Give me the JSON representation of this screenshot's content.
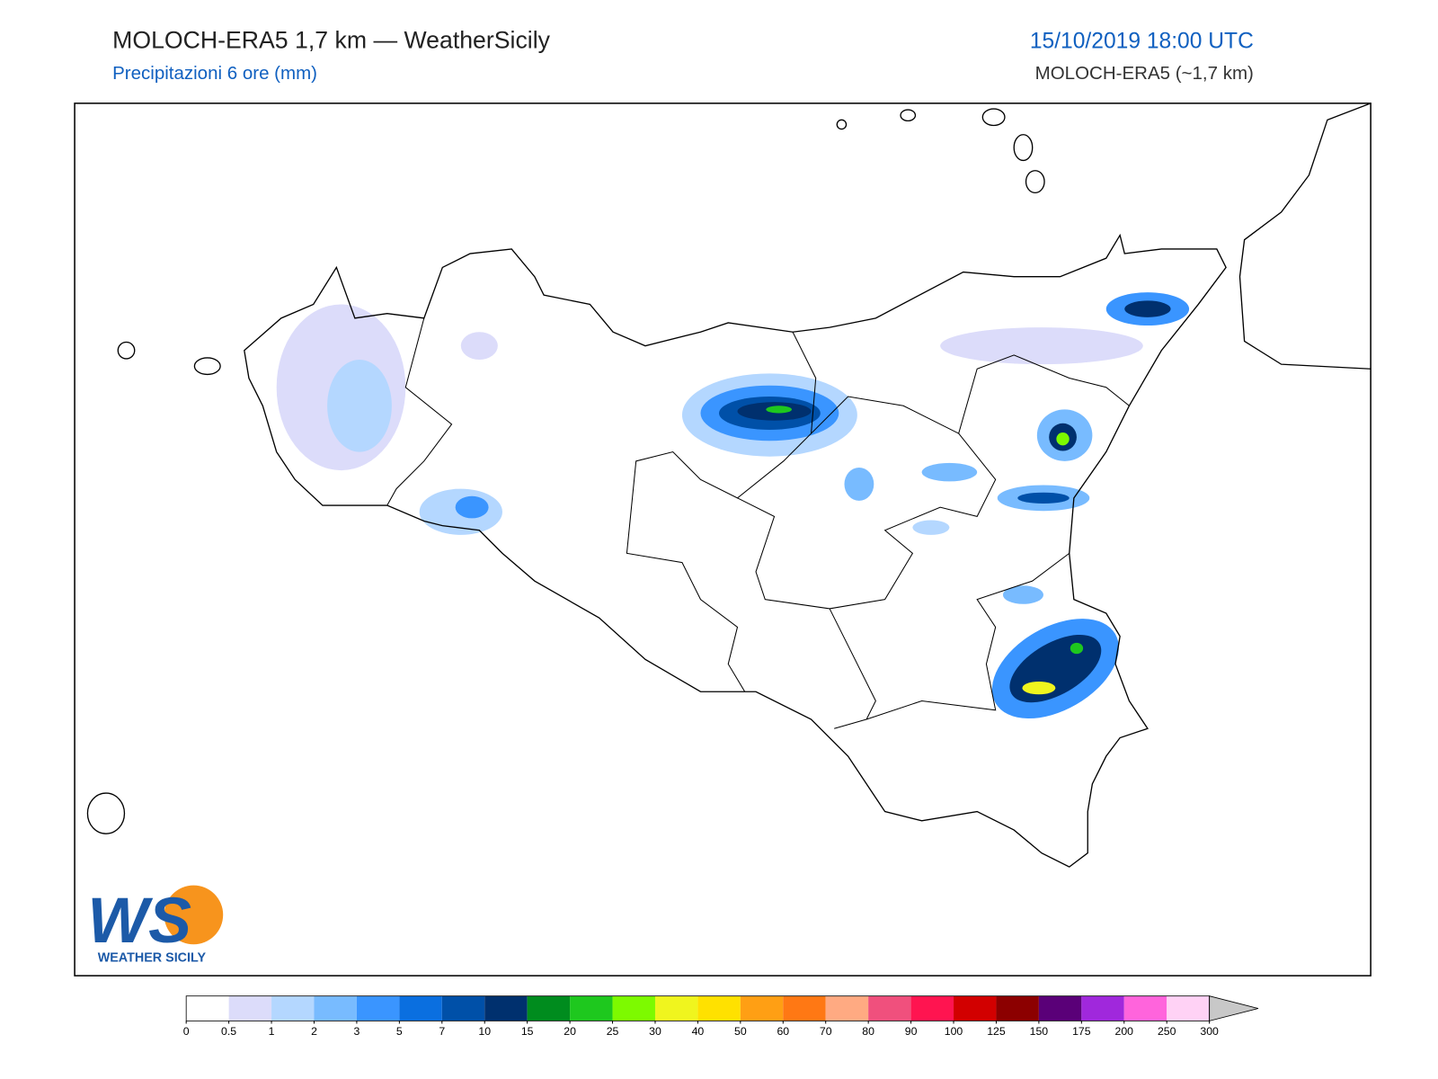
{
  "header": {
    "title": "MOLOCH-ERA5 1,7 km — WeatherSicily",
    "subtitle": "Precipitazioni 6 ore (mm)",
    "datetime": "15/10/2019 18:00 UTC",
    "model": "MOLOCH-ERA5 (~1,7 km)"
  },
  "logo": {
    "initials": "WS",
    "text": "WEATHER SICILY"
  },
  "colorbar": {
    "ticks": [
      0,
      0.5,
      1,
      2,
      3,
      5,
      7,
      10,
      15,
      20,
      25,
      30,
      40,
      50,
      60,
      70,
      80,
      90,
      100,
      125,
      150,
      175,
      200,
      250,
      300
    ],
    "colors": [
      "#ffffff",
      "#dcdcfa",
      "#b4d7ff",
      "#78bbff",
      "#3a95ff",
      "#0a6fe0",
      "#0050a8",
      "#00306e",
      "#008c1e",
      "#1ec81e",
      "#7dfa00",
      "#f0f51e",
      "#ffe100",
      "#ff9f14",
      "#ff7814",
      "#ffaa82",
      "#f0507d",
      "#ff1450",
      "#d20000",
      "#8c0000",
      "#5a0078",
      "#a028dc",
      "#ff64dc",
      "#ffd2f5"
    ],
    "over_color": "#c8c8c8"
  }
}
